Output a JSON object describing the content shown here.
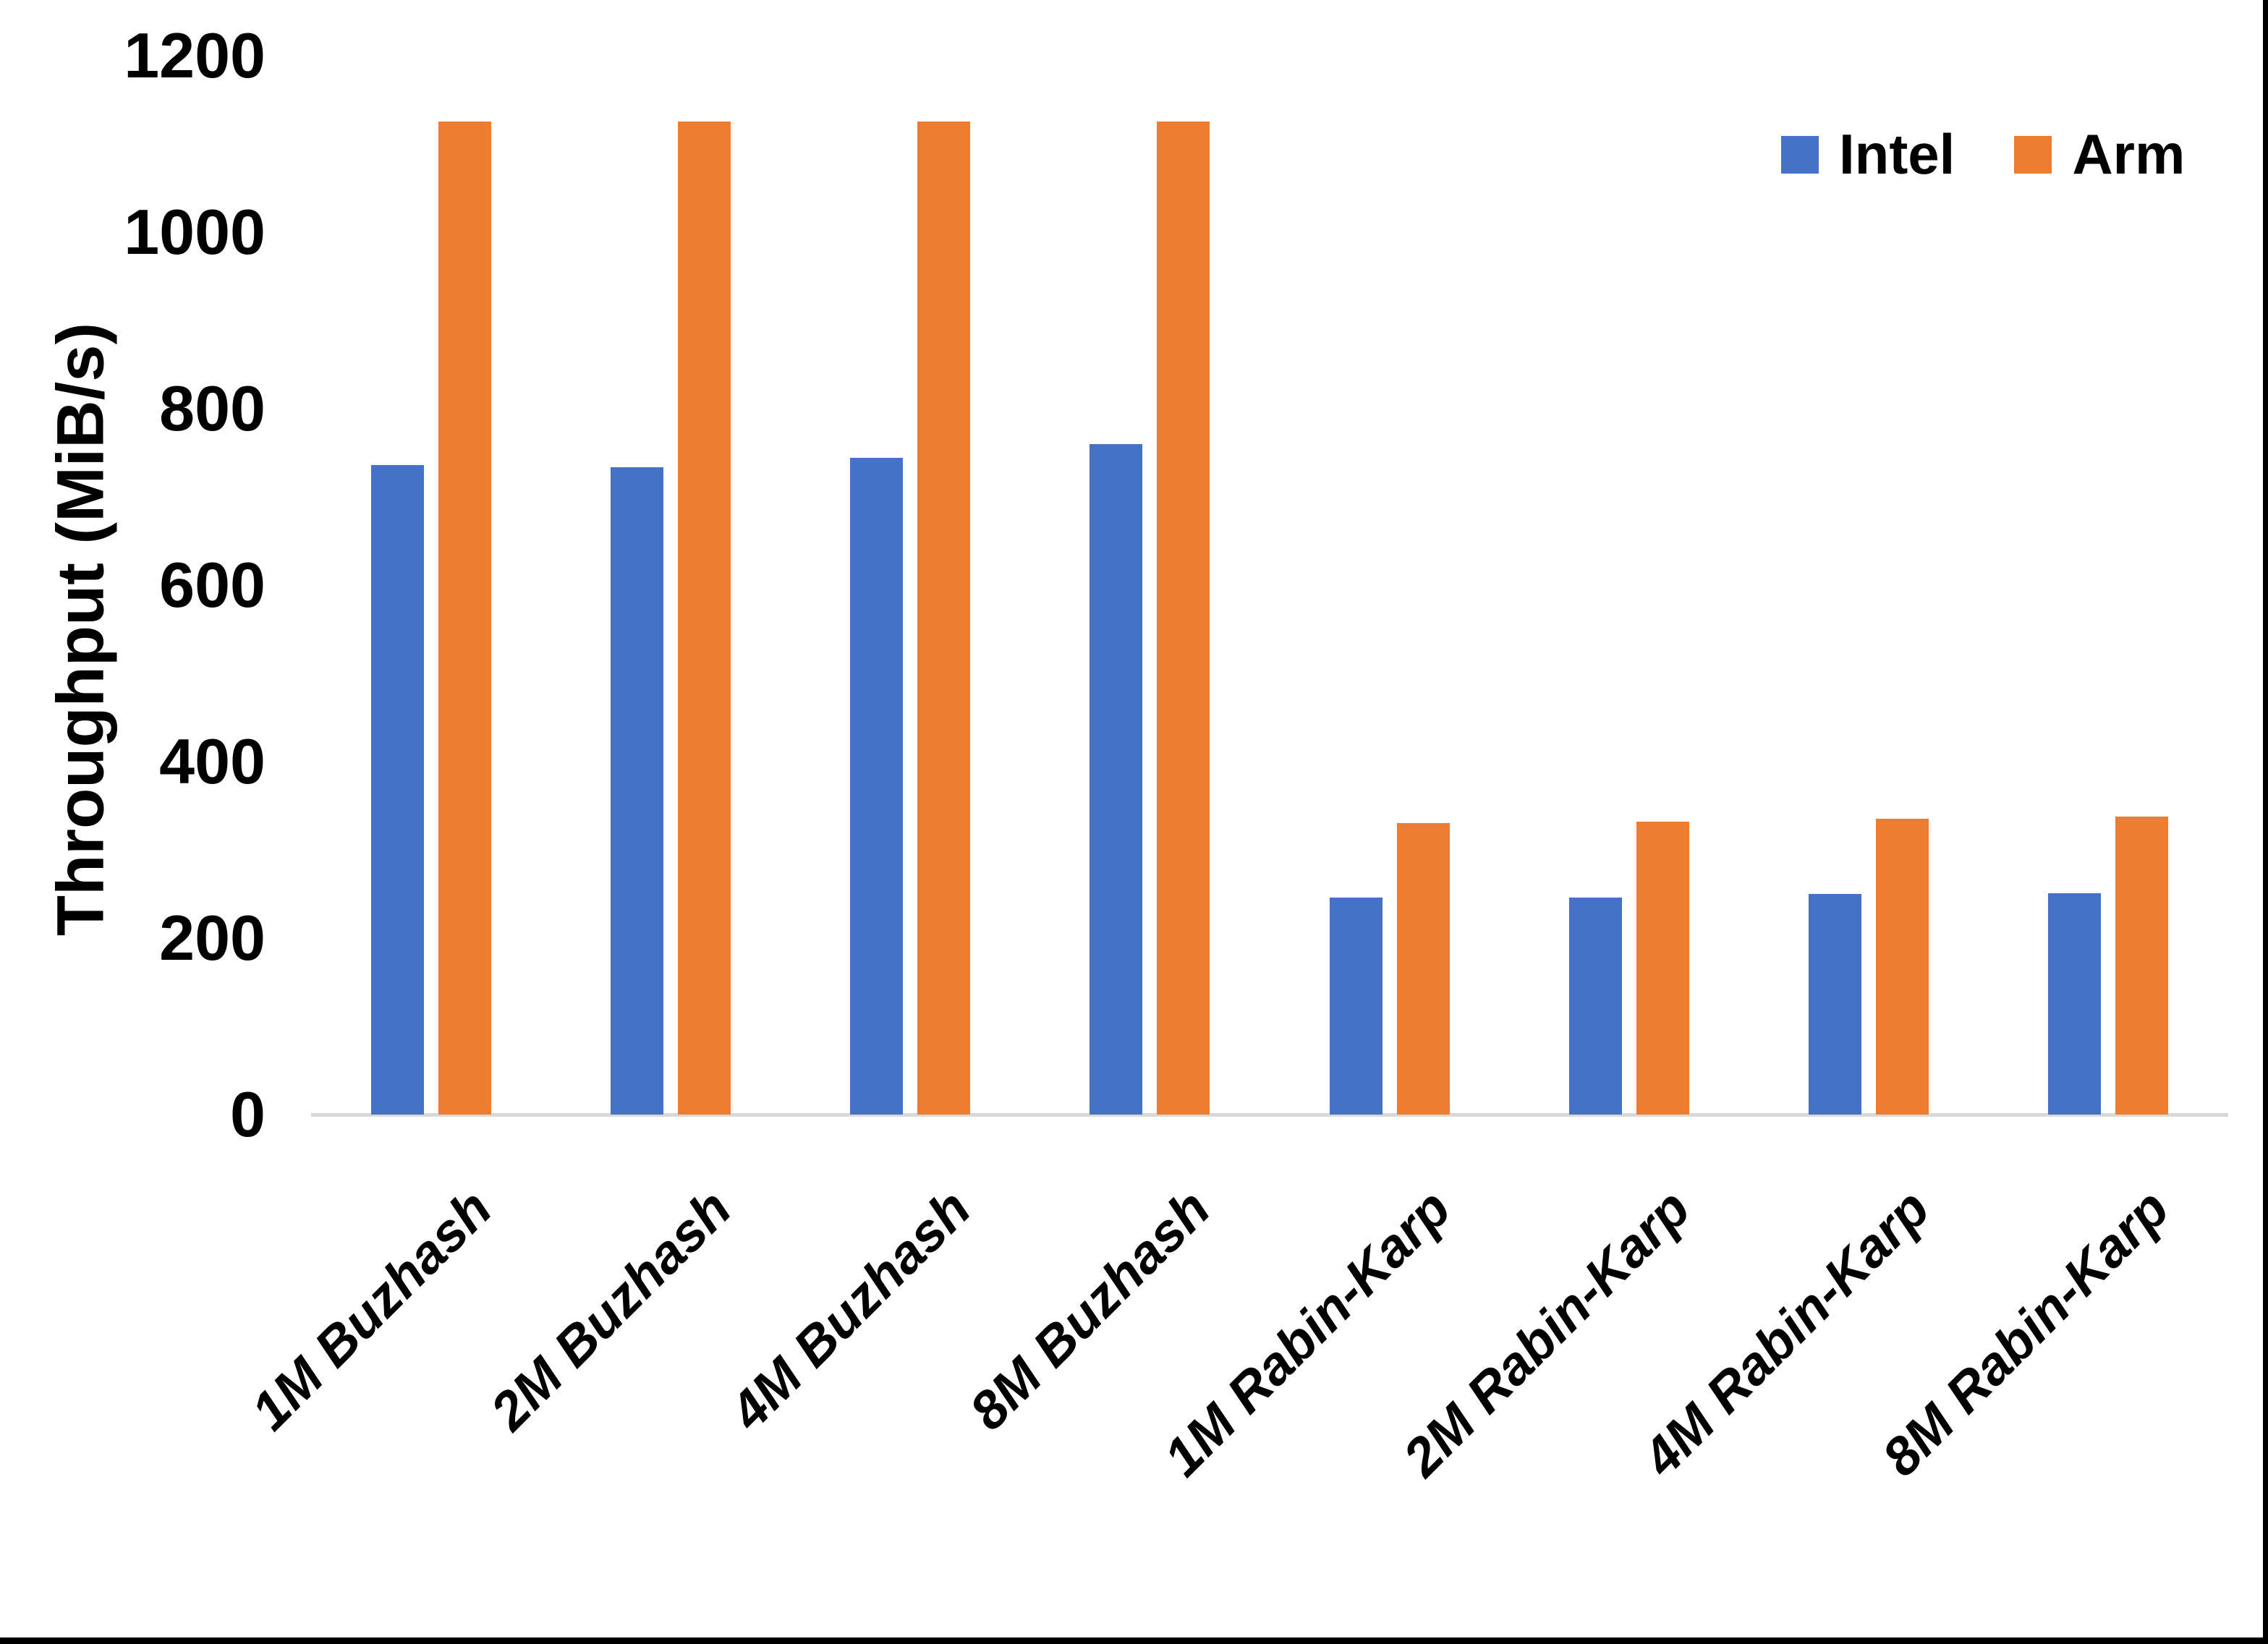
{
  "frame": {
    "background": "#FFFFFF",
    "right_border_color": "#000000",
    "bottom_border_color": "#000000"
  },
  "chart_data": {
    "type": "bar",
    "title": "",
    "ylabel": "Throughput (MiB/s)",
    "xlabel": "",
    "ylim": [
      0,
      1200
    ],
    "yticks": [
      0,
      200,
      400,
      600,
      800,
      1000,
      1200
    ],
    "grid": false,
    "legend_position": "top-right",
    "axis_line_color": "#D9D9D9",
    "text_color": "#000000",
    "categories": [
      "1M Buzhash",
      "2M Buzhash",
      "4M Buzhash",
      "8M Buzhash",
      "1M Rabin-Karp",
      "2M Rabin-Karp",
      "4M Rabin-Karp",
      "8M Rabin-Karp"
    ],
    "series": [
      {
        "name": "Intel",
        "color": "#4472C4",
        "values": [
          736,
          734,
          744,
          760,
          246,
          246,
          250,
          251
        ]
      },
      {
        "name": "Arm",
        "color": "#ED7D31",
        "values": [
          1125,
          1125,
          1125,
          1125,
          330,
          332,
          335,
          338
        ]
      }
    ]
  }
}
